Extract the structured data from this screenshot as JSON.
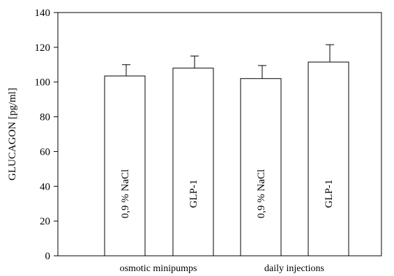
{
  "chart_data": {
    "type": "bar",
    "ylabel": "GLUCAGON [pg/ml]",
    "xlabel": "",
    "ylim": [
      0,
      140
    ],
    "y_ticks": [
      0,
      20,
      40,
      60,
      80,
      100,
      120,
      140
    ],
    "groups": [
      "osmotic minipumps",
      "daily injections"
    ],
    "bars": [
      {
        "label": "0,9 % NaCl",
        "group": 0,
        "value": 103.5,
        "error": 6.5
      },
      {
        "label": "GLP-1",
        "group": 0,
        "value": 108,
        "error": 7
      },
      {
        "label": "0,9 % NaCl",
        "group": 1,
        "value": 102,
        "error": 7.5
      },
      {
        "label": "GLP-1",
        "group": 1,
        "value": 111.5,
        "error": 10
      }
    ],
    "grid": false,
    "legend": "none"
  }
}
